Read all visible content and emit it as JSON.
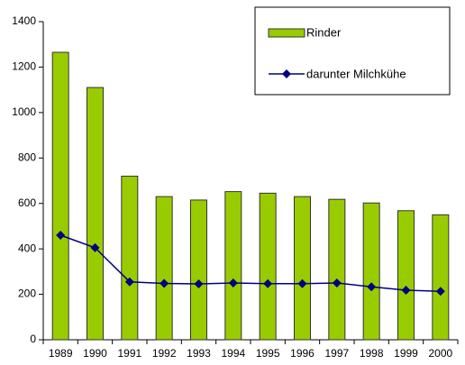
{
  "chart_data": {
    "type": "bar",
    "categories": [
      "1989",
      "1990",
      "1991",
      "1992",
      "1993",
      "1994",
      "1995",
      "1996",
      "1997",
      "1998",
      "1999",
      "2000"
    ],
    "series": [
      {
        "name": "Rinder",
        "type": "bar",
        "color": "#99cc00",
        "values": [
          1265,
          1110,
          720,
          630,
          615,
          652,
          645,
          630,
          618,
          602,
          568,
          550
        ]
      },
      {
        "name": "darunter Milchkühe",
        "type": "line",
        "color": "#000080",
        "values": [
          460,
          405,
          255,
          248,
          246,
          250,
          247,
          247,
          250,
          233,
          218,
          213
        ]
      }
    ],
    "ylim": [
      0,
      1400
    ],
    "yticks": [
      0,
      200,
      400,
      600,
      800,
      1000,
      1200,
      1400
    ],
    "grid": false,
    "legend": "top-right"
  }
}
